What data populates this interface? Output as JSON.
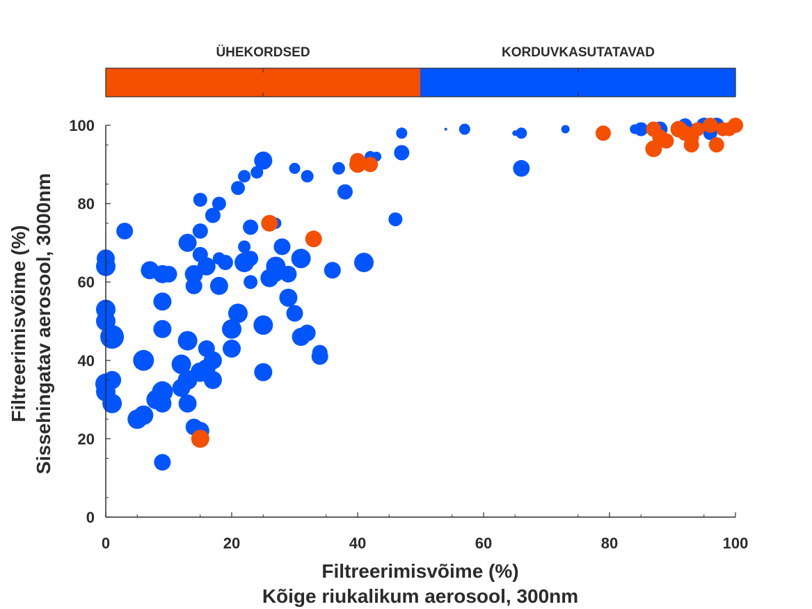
{
  "chart_data": {
    "type": "scatter",
    "xlabel": [
      "Filtreerimisvõime (%)",
      "Kõige riukalikum aerosool, 300nm"
    ],
    "ylabel": [
      "Filtreerimisvõime (%)",
      "Sissehingatav aerosool, 3000nm"
    ],
    "xlim": [
      0,
      100
    ],
    "ylim": [
      0,
      100
    ],
    "xticks": [
      "0",
      "20",
      "40",
      "60",
      "80",
      "100"
    ],
    "yticks": [
      "0",
      "20",
      "40",
      "60",
      "80",
      "100"
    ],
    "grid": false,
    "colorbar": {
      "placement": "top",
      "segments": [
        {
          "label": "ÜHEKORDSED",
          "color": "#f54f00"
        },
        {
          "label": "KORDUVKASUTATAVAD",
          "color": "#0055ff"
        }
      ]
    },
    "series": [
      {
        "color": "#0055ff",
        "points": [
          [
            0,
            66,
            13
          ],
          [
            0,
            64,
            14
          ],
          [
            0,
            53,
            14
          ],
          [
            0,
            50,
            14
          ],
          [
            1,
            46,
            17
          ],
          [
            0,
            34,
            15
          ],
          [
            1,
            35,
            13
          ],
          [
            0,
            32,
            14
          ],
          [
            1,
            29,
            14
          ],
          [
            3,
            73,
            12
          ],
          [
            5,
            25,
            14
          ],
          [
            6,
            26,
            14
          ],
          [
            6,
            40,
            15
          ],
          [
            7,
            63,
            13
          ],
          [
            8,
            30,
            14
          ],
          [
            9,
            32,
            15
          ],
          [
            9,
            29,
            13
          ],
          [
            9,
            48,
            13
          ],
          [
            9,
            55,
            13
          ],
          [
            9,
            62,
            13
          ],
          [
            10,
            62,
            12
          ],
          [
            9,
            14,
            12
          ],
          [
            12,
            39,
            14
          ],
          [
            12,
            33,
            13
          ],
          [
            13,
            35,
            14
          ],
          [
            13,
            29,
            13
          ],
          [
            13,
            45,
            14
          ],
          [
            13,
            70,
            13
          ],
          [
            14,
            62,
            13
          ],
          [
            14,
            59,
            12
          ],
          [
            14,
            23,
            12
          ],
          [
            15,
            22,
            13
          ],
          [
            15,
            37,
            14
          ],
          [
            15,
            73,
            11
          ],
          [
            15,
            67,
            11
          ],
          [
            15,
            81,
            10
          ],
          [
            16,
            64,
            13
          ],
          [
            16,
            43,
            12
          ],
          [
            16,
            38,
            13
          ],
          [
            17,
            40,
            13
          ],
          [
            17,
            35,
            13
          ],
          [
            17,
            77,
            11
          ],
          [
            18,
            80,
            10
          ],
          [
            18,
            59,
            13
          ],
          [
            19,
            65,
            11
          ],
          [
            18,
            66,
            9
          ],
          [
            20,
            48,
            14
          ],
          [
            20,
            43,
            13
          ],
          [
            21,
            52,
            14
          ],
          [
            21,
            84,
            10
          ],
          [
            22,
            69,
            9
          ],
          [
            22,
            87,
            9
          ],
          [
            22,
            65,
            14
          ],
          [
            23,
            66,
            11
          ],
          [
            23,
            74,
            11
          ],
          [
            23,
            60,
            10
          ],
          [
            24,
            88,
            9
          ],
          [
            25,
            91,
            13
          ],
          [
            25,
            49,
            14
          ],
          [
            25,
            37,
            13
          ],
          [
            26,
            61,
            13
          ],
          [
            27,
            62,
            11
          ],
          [
            27,
            64,
            14
          ],
          [
            27,
            75,
            8
          ],
          [
            28,
            69,
            12
          ],
          [
            29,
            56,
            13
          ],
          [
            29,
            62,
            12
          ],
          [
            30,
            52,
            12
          ],
          [
            30,
            89,
            8
          ],
          [
            31,
            46,
            13
          ],
          [
            31,
            66,
            14
          ],
          [
            32,
            47,
            12
          ],
          [
            32,
            87,
            9
          ],
          [
            34,
            42,
            11
          ],
          [
            34,
            41,
            12
          ],
          [
            36,
            63,
            12
          ],
          [
            37,
            89,
            9
          ],
          [
            38,
            83,
            11
          ],
          [
            41,
            65,
            14
          ],
          [
            42,
            92,
            8
          ],
          [
            43,
            92,
            7
          ],
          [
            46,
            76,
            10
          ],
          [
            47,
            93,
            11
          ],
          [
            47,
            98,
            8
          ],
          [
            54,
            99,
            2
          ],
          [
            57,
            99,
            8
          ],
          [
            65,
            98,
            4
          ],
          [
            66,
            98,
            8
          ],
          [
            66,
            89,
            12
          ],
          [
            73,
            99,
            6
          ],
          [
            84,
            99,
            7
          ],
          [
            85,
            99,
            10
          ],
          [
            88,
            99,
            11
          ],
          [
            92,
            100,
            10
          ],
          [
            93,
            99,
            8
          ],
          [
            94,
            99,
            9
          ],
          [
            95,
            100,
            11
          ],
          [
            96,
            98,
            10
          ],
          [
            96,
            99,
            9
          ],
          [
            97,
            100,
            11
          ]
        ]
      },
      {
        "color": "#f54f00",
        "points": [
          [
            15,
            20,
            13
          ],
          [
            26,
            75,
            12
          ],
          [
            33,
            71,
            12
          ],
          [
            40,
            91,
            11
          ],
          [
            40,
            90,
            12
          ],
          [
            42,
            90,
            11
          ],
          [
            79,
            98,
            11
          ],
          [
            87,
            99,
            11
          ],
          [
            87,
            94,
            12
          ],
          [
            88,
            97,
            11
          ],
          [
            89,
            96,
            11
          ],
          [
            91,
            99,
            12
          ],
          [
            92,
            98,
            11
          ],
          [
            93,
            95,
            11
          ],
          [
            93,
            97,
            11
          ],
          [
            94,
            99,
            10
          ],
          [
            96,
            100,
            11
          ],
          [
            97,
            95,
            11
          ],
          [
            98,
            99,
            10
          ],
          [
            99,
            99,
            10
          ],
          [
            100,
            100,
            11
          ]
        ]
      }
    ]
  }
}
